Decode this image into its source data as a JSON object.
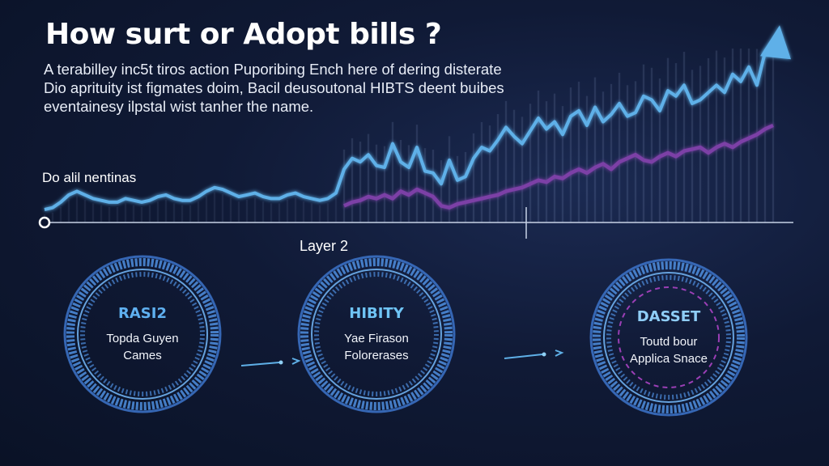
{
  "header": {
    "title": "How surt or Adopt bills ?",
    "subtitle_lines": [
      "A terabilley inc5t tiros action Puporibing Ench here of dering disterate",
      "Dio aprituity ist figmates doim, Bacil deusoutonal HIBTS deent buibes",
      "eventainesy ilpstal wist tanher the name."
    ]
  },
  "chart_labels": {
    "side_label": "Do alil nentinas",
    "axis_label": "Layer 2"
  },
  "colors": {
    "primary_line": "#5fb0e8",
    "secondary_line": "#7b3fa6",
    "ring": "#4f8fe0",
    "ring3_dashed": "#9b3fb6"
  },
  "chart_data": {
    "type": "line",
    "title": "",
    "xlabel": "Layer 2",
    "ylabel": "",
    "grid": false,
    "legend": "none",
    "x": [
      0,
      1,
      2,
      3,
      4,
      5,
      6,
      7,
      8,
      9,
      10,
      11,
      12,
      13,
      14,
      15,
      16,
      17,
      18,
      19,
      20,
      21,
      22,
      23,
      24,
      25,
      26,
      27,
      28,
      29,
      30,
      31,
      32,
      33,
      34,
      35,
      36,
      37,
      38,
      39,
      40,
      41,
      42,
      43,
      44,
      45,
      46,
      47,
      48,
      49,
      50,
      51,
      52,
      53,
      54,
      55,
      56,
      57,
      58,
      59,
      60,
      61,
      62,
      63,
      64,
      65,
      66,
      67,
      68,
      69,
      70,
      71,
      72,
      73,
      74,
      75,
      76,
      77,
      78,
      79,
      80,
      81,
      82,
      83,
      84,
      85,
      86,
      87,
      88,
      89,
      90
    ],
    "ylim": [
      0,
      100
    ],
    "series": [
      {
        "values": [
          4,
          5,
          8,
          12,
          14,
          12,
          10,
          9,
          8,
          8,
          10,
          9,
          8,
          9,
          11,
          12,
          10,
          9,
          9,
          11,
          14,
          16,
          15,
          13,
          11,
          12,
          13,
          11,
          10,
          10,
          12,
          13,
          11,
          10,
          9,
          10,
          13,
          26,
          32,
          30,
          34,
          28,
          27,
          40,
          30,
          27,
          38,
          25,
          24,
          18,
          31,
          20,
          22,
          32,
          38,
          36,
          42,
          49,
          44,
          40,
          47,
          54,
          48,
          52,
          45,
          55,
          58,
          50,
          60,
          52,
          56,
          62,
          55,
          57,
          66,
          64,
          58,
          69,
          66,
          72,
          62,
          64,
          68,
          72,
          68,
          78,
          74,
          82,
          72,
          90,
          95
        ]
      },
      {
        "values": [
          null,
          null,
          null,
          null,
          null,
          null,
          null,
          null,
          null,
          null,
          null,
          null,
          null,
          null,
          null,
          null,
          null,
          null,
          null,
          null,
          null,
          null,
          null,
          null,
          null,
          null,
          null,
          null,
          null,
          null,
          null,
          null,
          null,
          null,
          null,
          null,
          null,
          6,
          8,
          9,
          11,
          10,
          12,
          10,
          14,
          12,
          15,
          13,
          11,
          6,
          5,
          7,
          8,
          9,
          10,
          11,
          12,
          14,
          15,
          16,
          18,
          20,
          19,
          22,
          21,
          24,
          26,
          24,
          27,
          29,
          26,
          30,
          32,
          34,
          31,
          30,
          33,
          35,
          33,
          36,
          37,
          38,
          35,
          38,
          40,
          38,
          41,
          43,
          45,
          48,
          50
        ]
      }
    ],
    "endpoint_marker": "arrow"
  },
  "stages": [
    {
      "title": "RASI2",
      "lines": [
        "Topda Guyen",
        "Cames"
      ],
      "title_color": "#5fb0f0"
    },
    {
      "title": "HIBITY",
      "lines": [
        "Yae Firason",
        "Folorerases"
      ],
      "title_color": "#6fc4f5"
    },
    {
      "title": "DASSET",
      "lines": [
        "Toutd bour",
        "Applica Snace"
      ],
      "title_color": "#8fcdf7"
    }
  ]
}
